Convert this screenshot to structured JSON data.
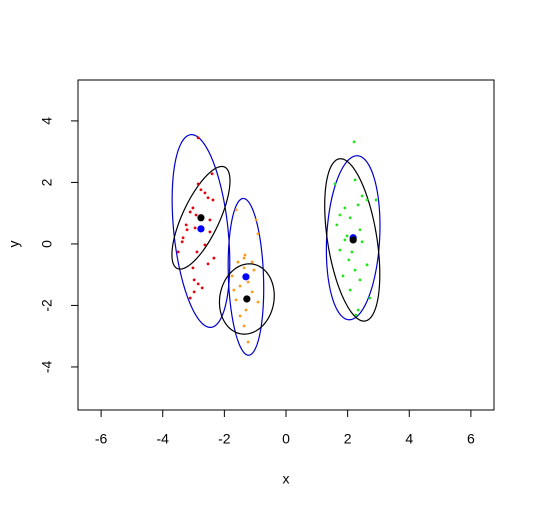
{
  "chart_data": {
    "type": "scatter",
    "xlabel": "x",
    "ylabel": "y",
    "xlim": [
      -6.75,
      6.75
    ],
    "ylim": [
      -5.4,
      5.33
    ],
    "xticks": [
      -6,
      -4,
      -2,
      0,
      2,
      4,
      6
    ],
    "yticks": [
      -4,
      -2,
      0,
      2,
      4
    ],
    "series": [
      {
        "color": "#e8000b",
        "x": [
          -2.85,
          -2.4,
          -2.85,
          -2.76,
          -2.63,
          -2.53,
          -3.02,
          -3.11,
          -2.92,
          -2.47,
          -3.24,
          -2.95,
          -2.47,
          -3.34,
          -3.37,
          -2.63,
          -2.89,
          -2.34,
          -2.53,
          -3.02,
          -2.98,
          -2.85,
          -2.72,
          -2.98,
          -3.11,
          -3.5,
          -2.37,
          -3.21
        ],
        "y": [
          3.45,
          2.28,
          1.95,
          1.76,
          1.66,
          1.5,
          1.17,
          1.04,
          0.94,
          0.78,
          0.62,
          0.52,
          0.39,
          0.2,
          0.07,
          -0.03,
          -0.26,
          -0.46,
          -0.65,
          -0.78,
          -1.17,
          -1.3,
          -1.43,
          -1.56,
          -1.76,
          -0.26,
          1.43,
          0.46
        ]
      },
      {
        "color": "#ff9a1a",
        "x": [
          -1.62,
          -0.97,
          -0.91,
          -1.33,
          -1.36,
          -1.56,
          -1.1,
          -1.36,
          -1.04,
          -1.75,
          -1.23,
          -1.49,
          -1.62,
          -0.91,
          -1.3,
          -1.49,
          -1.36,
          -1.23,
          -1.1,
          -1.69
        ],
        "y": [
          1.11,
          0.78,
          0.33,
          -0.36,
          -0.46,
          -0.59,
          -0.59,
          -0.78,
          -0.85,
          -1.04,
          -1.24,
          -1.37,
          -1.82,
          -1.89,
          -2.15,
          -2.34,
          -2.67,
          -3.19,
          -1.56,
          -1.5
        ]
      },
      {
        "color": "#22e61a",
        "x": [
          2.21,
          1.59,
          2.24,
          2.47,
          2.63,
          2.34,
          1.91,
          1.75,
          2.08,
          1.65,
          2.4,
          1.98,
          1.91,
          2.47,
          1.75,
          2.14,
          2.04,
          2.63,
          2.24,
          1.85,
          2.4,
          2.08,
          2.72,
          2.34,
          2.27,
          2.92
        ],
        "y": [
          3.32,
          1.95,
          2.08,
          1.56,
          1.43,
          1.27,
          1.17,
          0.94,
          0.85,
          0.62,
          0.46,
          0.26,
          0.13,
          0.07,
          -0.2,
          -0.26,
          -0.52,
          -0.68,
          -0.85,
          -1.04,
          -1.17,
          -1.5,
          -1.76,
          -2.15,
          -2.31,
          1.43
        ]
      }
    ],
    "centers": [
      {
        "color": "#0000ff",
        "x": [
          -2.76,
          -1.3,
          2.18
        ],
        "y": [
          0.49,
          -1.07,
          0.2
        ]
      },
      {
        "color": "#000000",
        "x": [
          -2.76,
          -1.27,
          2.18
        ],
        "y": [
          0.85,
          -1.79,
          0.13
        ]
      }
    ],
    "ellipses": [
      {
        "color": "#0000cc",
        "center": [
          -2.76,
          0.42
        ],
        "semi_axes": [
          3.15,
          0.88
        ],
        "angle": 96
      },
      {
        "color": "#000000",
        "center": [
          -2.76,
          0.85
        ],
        "semi_axes": [
          1.82,
          0.6
        ],
        "angle": 65
      },
      {
        "color": "#0000cc",
        "center": [
          -1.3,
          -1.07
        ],
        "semi_axes": [
          2.55,
          0.57
        ],
        "angle": 92
      },
      {
        "color": "#000000",
        "center": [
          -1.27,
          -1.79
        ],
        "semi_axes": [
          1.15,
          0.88
        ],
        "angle": 80
      },
      {
        "color": "#0000cc",
        "center": [
          2.18,
          0.2
        ],
        "semi_axes": [
          2.67,
          0.86
        ],
        "angle": 87
      },
      {
        "color": "#000000",
        "center": [
          2.15,
          0.13
        ],
        "semi_axes": [
          2.67,
          0.8
        ],
        "angle": -81
      }
    ]
  }
}
